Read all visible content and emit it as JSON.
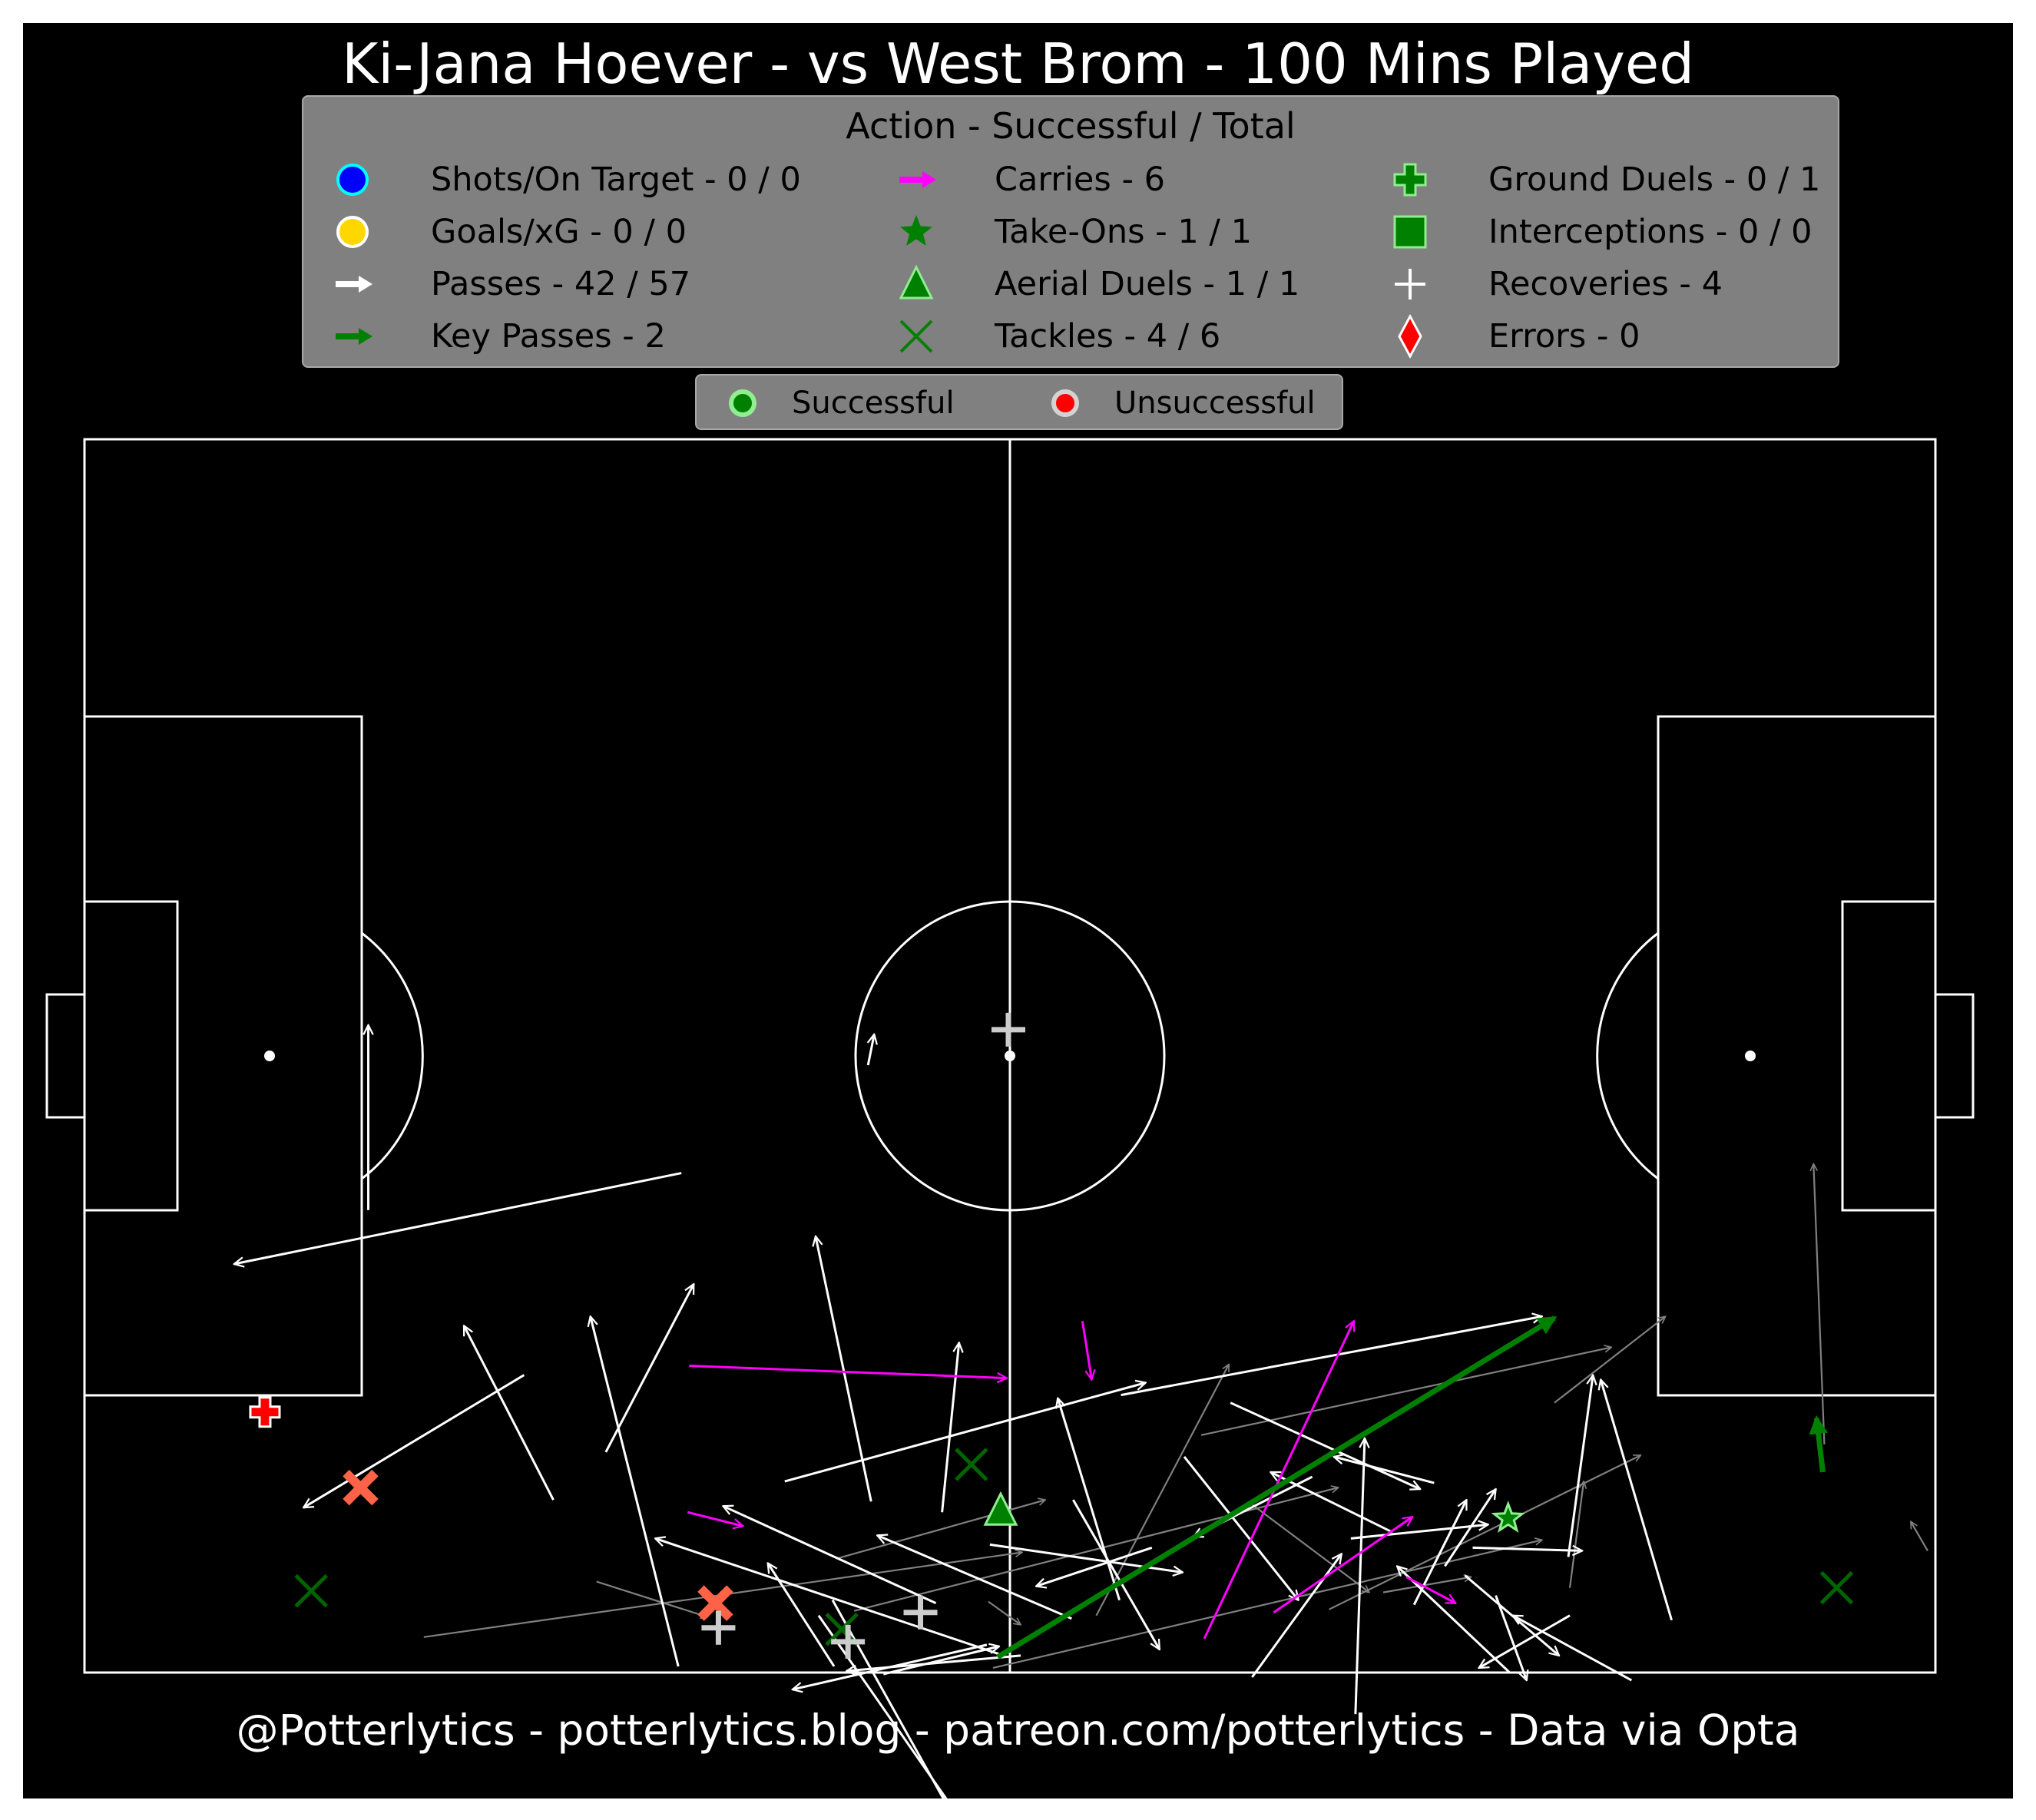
{
  "title": "Ki-Jana Hoever - vs West Brom - 100 Mins Played",
  "footer": "@Potterlytics - potterlytics.blog - patreon.com/potterlytics - Data via Opta",
  "legend": {
    "title": "Action - Successful / Total",
    "items": [
      {
        "label": "Shots/On Target - 0 / 0",
        "icon": "circle-blue"
      },
      {
        "label": "Goals/xG - 0 / 0",
        "icon": "circle-gold"
      },
      {
        "label": "Passes - 42 / 57",
        "icon": "arrow-white"
      },
      {
        "label": "Key Passes - 2",
        "icon": "arrow-green"
      },
      {
        "label": "Carries - 6",
        "icon": "arrow-magenta"
      },
      {
        "label": "Take-Ons - 1 / 1",
        "icon": "star-green"
      },
      {
        "label": "Aerial Duels - 1 / 1",
        "icon": "triangle-green"
      },
      {
        "label": "Tackles - 4 / 6",
        "icon": "x-green"
      },
      {
        "label": "Ground Duels - 0 / 1",
        "icon": "plus-green"
      },
      {
        "label": "Interceptions - 0 / 0",
        "icon": "square-green"
      },
      {
        "label": "Recoveries - 4",
        "icon": "plus-white"
      },
      {
        "label": "Errors - 0",
        "icon": "diamond-red"
      }
    ]
  },
  "outcome_legend": {
    "successful": "Successful",
    "unsuccessful": "Unsuccessful"
  },
  "colors": {
    "pass_success": "#ffffff",
    "pass_fail": "#808080",
    "key_pass": "#008000",
    "carry": "#ff00ff",
    "tackle_success": "#006400",
    "fail_marker": "#ff6347",
    "duel_fail": "#ff0000",
    "success_outline": "#90ee90"
  },
  "chart_data": {
    "type": "scatter",
    "pitch": {
      "length": 120,
      "width": 80
    },
    "passes_success": [
      [
        38.7,
        47.6,
        9.7,
        53.5
      ],
      [
        28.5,
        60.7,
        14.2,
        69.3
      ],
      [
        45.4,
        67.6,
        68.8,
        61.2
      ],
      [
        48.5,
        75.3,
        57.2,
        90.9
      ],
      [
        55.6,
        69.6,
        56.7,
        58.6
      ],
      [
        58.5,
        78.2,
        45.9,
        81.1
      ],
      [
        67.1,
        75.3,
        63.1,
        62.2
      ],
      [
        59.3,
        78.8,
        37.0,
        71.3
      ],
      [
        47.6,
        76.3,
        59.5,
        93.4
      ],
      [
        64.1,
        68.8,
        69.7,
        78.5
      ],
      [
        67.2,
        62.0,
        94.5,
        56.9
      ],
      [
        74.3,
        62.5,
        86.6,
        68.1
      ],
      [
        88.2,
        73.1,
        91.5,
        68.1
      ],
      [
        87.5,
        67.7,
        81.0,
        66.0
      ],
      [
        96.2,
        72.5,
        97.8,
        60.7
      ],
      [
        79.6,
        67.3,
        71.9,
        71.2
      ],
      [
        86.2,
        75.6,
        89.6,
        68.8
      ],
      [
        90.0,
        71.9,
        97.1,
        72.1
      ],
      [
        71.3,
        66.0,
        78.7,
        75.3
      ],
      [
        69.2,
        71.9,
        61.7,
        74.4
      ],
      [
        82.1,
        71.3,
        91.0,
        70.4
      ],
      [
        84.8,
        70.9,
        76.9,
        67.0
      ],
      [
        82.4,
        82.7,
        83.0,
        64.8
      ],
      [
        55.2,
        75.5,
        41.4,
        69.2
      ],
      [
        51.8,
        80.1,
        59.3,
        78.3
      ],
      [
        64.0,
        76.5,
        51.4,
        71.1
      ],
      [
        48.6,
        79.6,
        44.3,
        72.9
      ],
      [
        58.7,
        71.7,
        71.2,
        73.5
      ],
      [
        92.4,
        80.0,
        85.1,
        73.1
      ],
      [
        100.3,
        80.5,
        92.6,
        76.3
      ],
      [
        96.3,
        76.3,
        90.4,
        79.7
      ],
      [
        89.5,
        73.7,
        95.6,
        78.9
      ],
      [
        91.5,
        75.0,
        93.5,
        80.5
      ],
      [
        30.4,
        68.8,
        24.6,
        57.5
      ],
      [
        38.5,
        79.6,
        32.8,
        56.9
      ],
      [
        33.8,
        65.7,
        39.5,
        54.8
      ],
      [
        18.4,
        50.0,
        18.4,
        38.0
      ],
      [
        51.0,
        68.9,
        47.4,
        51.7
      ],
      [
        50.8,
        40.6,
        51.2,
        38.6
      ],
      [
        60.7,
        78.9,
        49.4,
        79.9
      ],
      [
        75.7,
        80.3,
        81.5,
        72.3
      ],
      [
        102.9,
        76.6,
        98.3,
        61.0
      ]
    ],
    "passes_unsuccessful": [
      [
        22.0,
        77.7,
        60.8,
        72.2
      ],
      [
        48.8,
        72.6,
        62.3,
        68.8
      ],
      [
        49.9,
        76.0,
        81.3,
        68.0
      ],
      [
        58.9,
        79.7,
        94.5,
        71.4
      ],
      [
        75.7,
        69.1,
        83.3,
        74.8
      ],
      [
        65.6,
        76.3,
        74.2,
        60.0
      ],
      [
        33.2,
        74.1,
        40.4,
        76.4
      ],
      [
        80.7,
        75.9,
        100.9,
        65.9
      ],
      [
        84.2,
        74.8,
        89.9,
        73.8
      ],
      [
        96.3,
        74.5,
        97.2,
        67.6
      ],
      [
        72.4,
        64.6,
        99.0,
        58.9
      ],
      [
        95.3,
        62.5,
        102.5,
        56.9
      ],
      [
        112.8,
        65.2,
        112.1,
        47.0
      ],
      [
        119.5,
        72.1,
        118.4,
        70.2
      ],
      [
        58.6,
        75.4,
        60.7,
        76.9
      ]
    ],
    "key_passes": [
      [
        59.2,
        79.0,
        95.3,
        57.0
      ],
      [
        112.7,
        67.0,
        112.3,
        63.5
      ]
    ],
    "carries": [
      [
        39.2,
        60.1,
        59.8,
        60.9
      ],
      [
        39.1,
        69.6,
        42.7,
        70.5
      ],
      [
        64.7,
        57.2,
        65.3,
        61.0
      ],
      [
        72.6,
        77.8,
        82.3,
        57.2
      ],
      [
        77.1,
        76.1,
        86.1,
        69.9
      ],
      [
        85.7,
        73.8,
        88.9,
        75.5
      ]
    ],
    "tackles_success": [
      [
        14.7,
        74.7
      ],
      [
        57.5,
        66.5
      ],
      [
        49.1,
        77.2
      ],
      [
        113.6,
        74.5
      ]
    ],
    "tackles_unsuccessful": [
      [
        17.9,
        68.0
      ],
      [
        40.9,
        75.5
      ]
    ],
    "take_ons_success": [
      [
        92.3,
        70.0
      ]
    ],
    "aerials_success": [
      [
        59.4,
        69.5
      ]
    ],
    "ground_duels_unsuccessful": [
      [
        11.7,
        63.1
      ]
    ],
    "recoveries": [
      [
        59.9,
        38.3
      ],
      [
        41.1,
        77.1
      ],
      [
        49.5,
        78.0
      ],
      [
        54.2,
        76.1
      ]
    ]
  }
}
